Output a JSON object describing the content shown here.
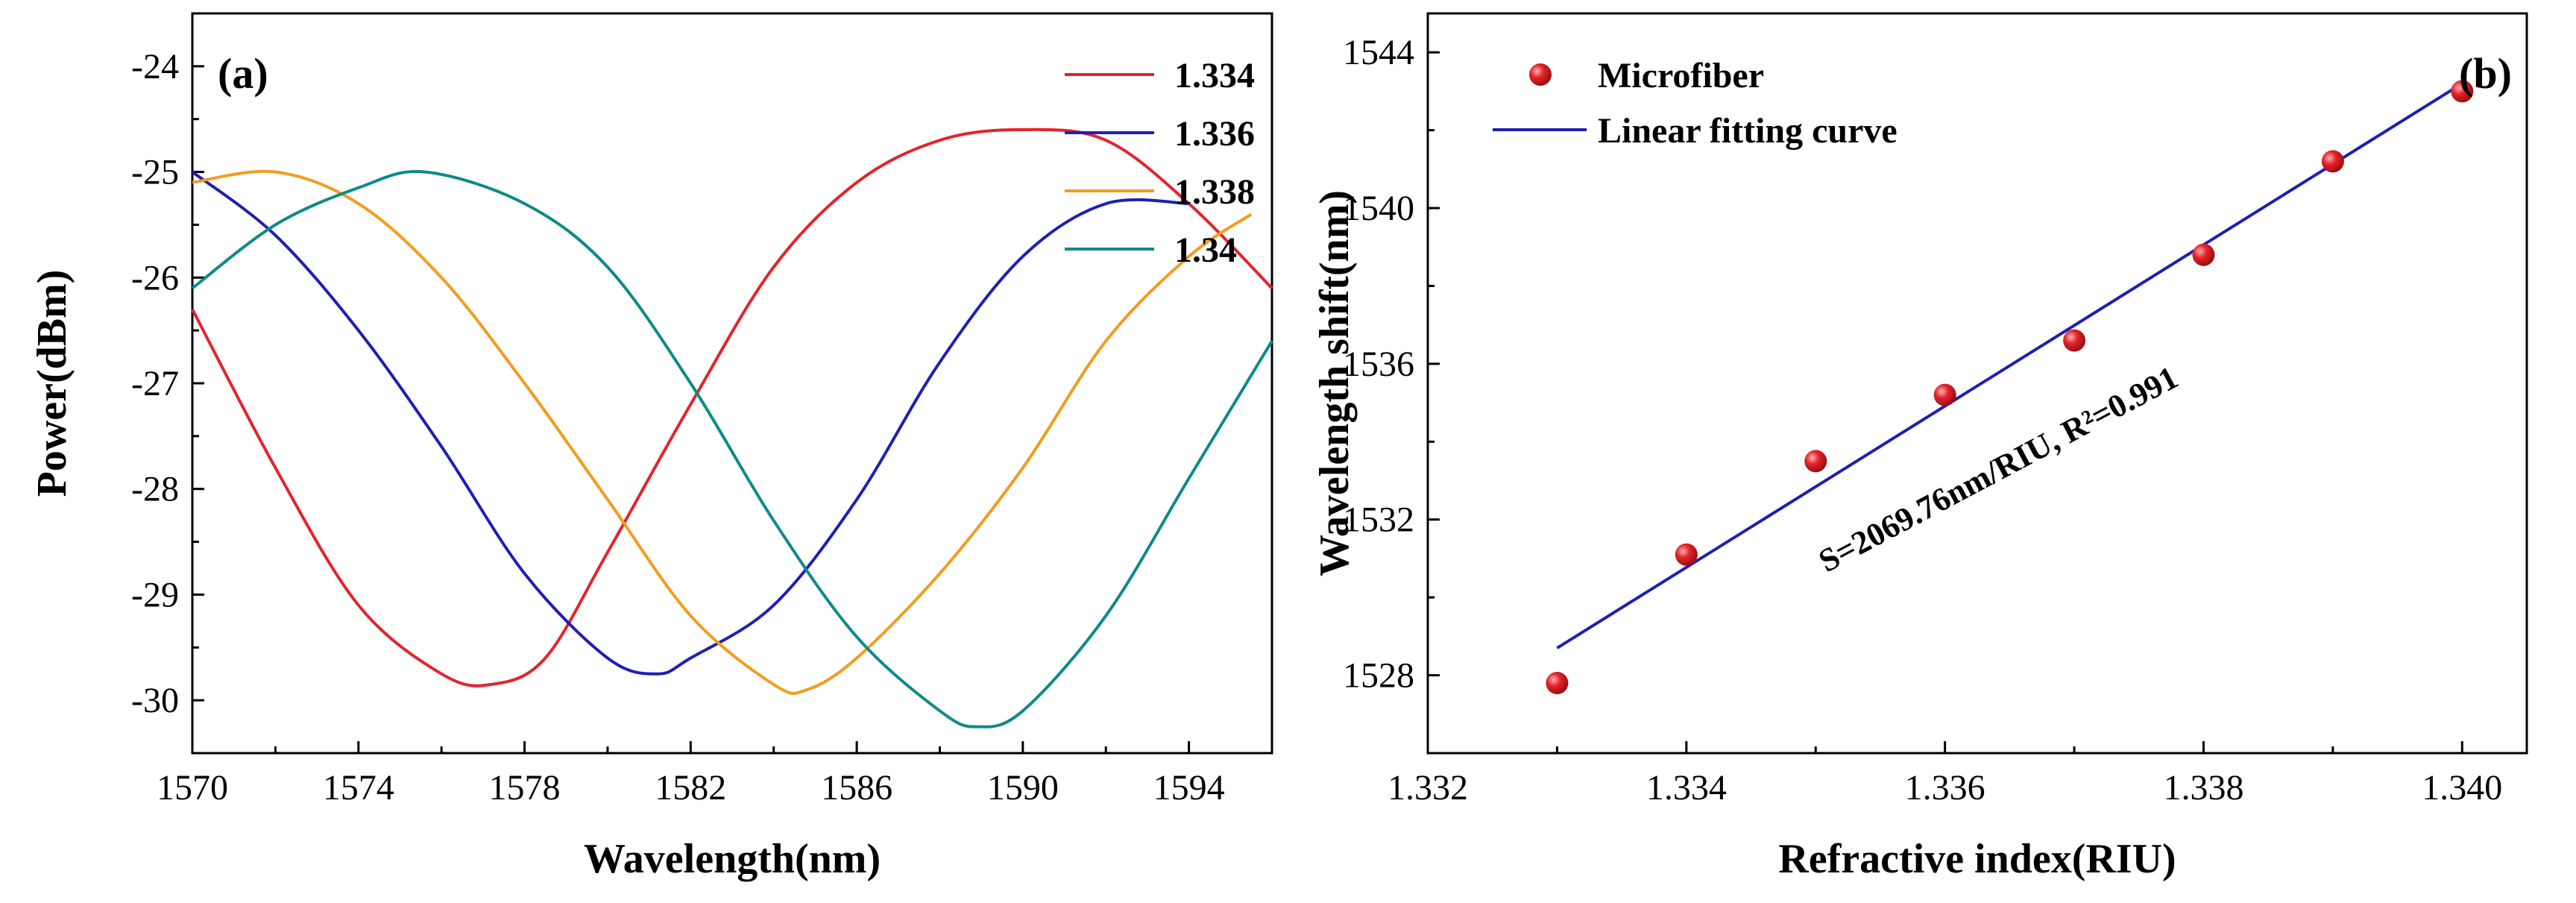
{
  "chart_data": [
    {
      "panel": "(a)",
      "type": "line",
      "title": "",
      "xlabel": "Wavelength(nm)",
      "ylabel": "Power(dBm)",
      "xlim": [
        1570,
        1596
      ],
      "ylim": [
        -30.5,
        -23.5
      ],
      "xticks": [
        1570,
        1574,
        1578,
        1582,
        1586,
        1590,
        1594
      ],
      "yticks": [
        -30,
        -29,
        -28,
        -27,
        -26,
        -25,
        -24
      ],
      "grid": false,
      "legend_position": "top-right",
      "series": [
        {
          "name": "1.334",
          "color": "#e3242b",
          "x": [
            1570,
            1572,
            1574,
            1576,
            1577.2,
            1578.5,
            1580,
            1582,
            1584,
            1586,
            1588,
            1590,
            1592,
            1594,
            1596
          ],
          "values": [
            -26.3,
            -27.8,
            -29.1,
            -29.75,
            -29.85,
            -29.6,
            -28.6,
            -27.2,
            -25.9,
            -25.1,
            -24.7,
            -24.6,
            -24.7,
            -25.3,
            -26.1
          ]
        },
        {
          "name": "1.336",
          "color": "#1f1fb4",
          "x": [
            1570,
            1572,
            1574,
            1576,
            1578,
            1580,
            1581.2,
            1582,
            1584,
            1586,
            1588,
            1590,
            1592,
            1594
          ],
          "values": [
            -25.0,
            -25.6,
            -26.5,
            -27.6,
            -28.8,
            -29.6,
            -29.75,
            -29.6,
            -29.1,
            -28.1,
            -26.8,
            -25.8,
            -25.3,
            -25.3
          ]
        },
        {
          "name": "1.338",
          "color": "#f39c1e",
          "x": [
            1570,
            1572,
            1574,
            1576,
            1578,
            1580,
            1582,
            1584,
            1584.8,
            1586,
            1588,
            1590,
            1592,
            1594,
            1595.5
          ],
          "values": [
            -25.1,
            -25.0,
            -25.3,
            -26.0,
            -27.0,
            -28.1,
            -29.2,
            -29.85,
            -29.9,
            -29.6,
            -28.8,
            -27.8,
            -26.6,
            -25.8,
            -25.4
          ]
        },
        {
          "name": "1.34",
          "color": "#0e8a8a",
          "x": [
            1570,
            1572,
            1574,
            1575.6,
            1578,
            1580,
            1582,
            1584,
            1586,
            1588,
            1588.9,
            1590,
            1592,
            1594,
            1596
          ],
          "values": [
            -26.1,
            -25.5,
            -25.15,
            -25.0,
            -25.3,
            -25.9,
            -27.0,
            -28.3,
            -29.4,
            -30.1,
            -30.25,
            -30.1,
            -29.2,
            -27.9,
            -26.6
          ]
        }
      ]
    },
    {
      "panel": "(b)",
      "type": "scatter",
      "title": "",
      "xlabel": "Refractive index(RIU)",
      "ylabel": "Wavelength shift(nm)",
      "xlim": [
        1.332,
        1.3405
      ],
      "ylim": [
        1526,
        1545
      ],
      "xticks": [
        "1.332",
        "1.334",
        "1.336",
        "1.338",
        "1.340"
      ],
      "yticks": [
        1528,
        1532,
        1536,
        1540,
        1544
      ],
      "grid": false,
      "legend_position": "top-left",
      "series": [
        {
          "name": "Microfiber",
          "kind": "points",
          "color": "#e3242b",
          "x": [
            1.333,
            1.334,
            1.335,
            1.336,
            1.337,
            1.338,
            1.339,
            1.34
          ],
          "values": [
            1527.8,
            1531.1,
            1533.5,
            1535.2,
            1536.6,
            1538.8,
            1541.2,
            1543.0
          ]
        },
        {
          "name": "Linear fitting curve",
          "kind": "line",
          "color": "#1f1fb4",
          "x": [
            1.333,
            1.34
          ],
          "values": [
            1528.7,
            1543.2
          ]
        }
      ],
      "annotation": "S=2069.76nm/RIU, R²=0.991"
    }
  ]
}
